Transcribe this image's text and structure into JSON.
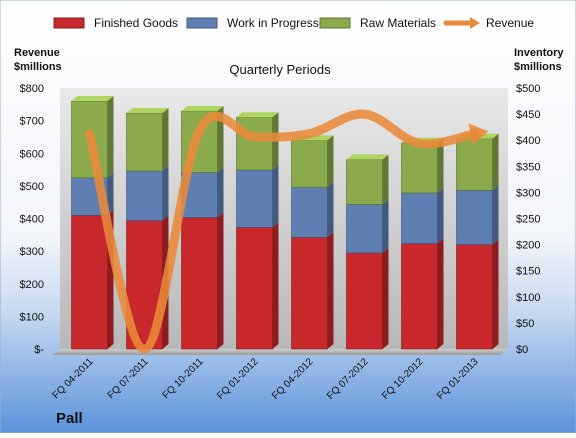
{
  "chart_data": {
    "type": "bar",
    "stacked": true,
    "title": "Quarterly Periods",
    "company": "Pall",
    "left_axis_title": [
      "Revenue",
      "$millions"
    ],
    "right_axis_title": [
      "Inventory",
      "$millions"
    ],
    "categories": [
      "FQ 04-2011",
      "FQ 07-2011",
      "FQ 10-2011",
      "FQ 01-2012",
      "FQ 04-2012",
      "FQ 07-2012",
      "FQ 10-2012",
      "FQ 01-2013"
    ],
    "left_ticks": [
      "$-",
      "$100",
      "$200",
      "$300",
      "$400",
      "$500",
      "$600",
      "$700",
      "$800"
    ],
    "right_ticks": [
      "$0",
      "$50",
      "$100",
      "$150",
      "$200",
      "$250",
      "$300",
      "$350",
      "$400",
      "$450",
      "$500"
    ],
    "ylim_left": [
      0,
      800
    ],
    "ylim_right": [
      0,
      500
    ],
    "series": [
      {
        "name": "Finished Goods",
        "axis": "right",
        "color": "#c8282b",
        "values": [
          256,
          246,
          252,
          233,
          214,
          184,
          202,
          200
        ]
      },
      {
        "name": "Work in Progress",
        "axis": "right",
        "color": "#5f7fb3",
        "values": [
          72,
          95,
          86,
          110,
          96,
          93,
          97,
          104
        ]
      },
      {
        "name": "Raw Materials",
        "axis": "right",
        "color": "#8aaa4c",
        "values": [
          147,
          111,
          118,
          101,
          90,
          86,
          96,
          99
        ]
      },
      {
        "name": "Revenue",
        "axis": "left",
        "type": "line",
        "color": "#e98a3a",
        "values": [
          660,
          0,
          670,
          650,
          660,
          720,
          630,
          660
        ]
      }
    ],
    "legend_position": "top",
    "grid": false
  }
}
